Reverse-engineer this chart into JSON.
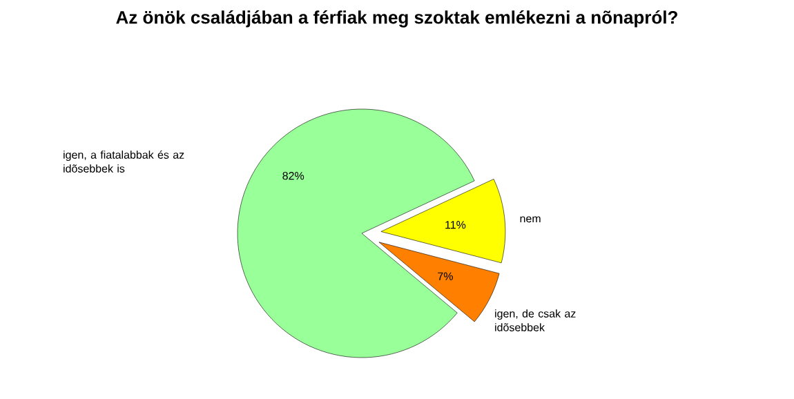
{
  "chart_data": {
    "type": "pie",
    "title": "Az önök családjában a férfiak meg szoktak emlékezni a nõnapról?",
    "categories": [
      "igen, a fiatalabbak és az idõsebbek is",
      "nem",
      "igen, de csak az idõsebbek"
    ],
    "values": [
      82,
      11,
      7
    ],
    "value_labels": [
      "82%",
      "11%",
      "7%"
    ],
    "colors": [
      "#99ff99",
      "#ffff00",
      "#ff8000"
    ]
  }
}
